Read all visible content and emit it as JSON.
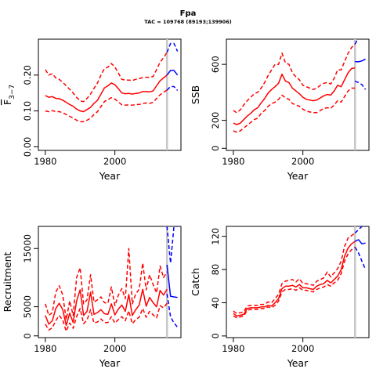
{
  "header": {
    "title": "Fpa",
    "subtitle": "TAC = 109768 (89193;139906)"
  },
  "colors": {
    "hist": "#ff0000",
    "proj": "#0000ff",
    "vline": "#c8c8c8"
  },
  "chart_data": [
    {
      "id": "f",
      "type": "line",
      "xlabel": "Year",
      "ylabel": "F̅ 3–7",
      "ylabel_main": "F",
      "ylabel_sub": "3−7",
      "xlim": [
        1978,
        2019
      ],
      "ylim": [
        -0.01,
        0.3
      ],
      "xticks": [
        1980,
        2000
      ],
      "xtick_labels": [
        "1980",
        "2000"
      ],
      "yticks": [
        0.0,
        0.1,
        0.2
      ],
      "ytick_labels": [
        "0.00",
        "0.10",
        "0.20"
      ],
      "vline_x": 2015,
      "grid": false,
      "x": [
        1980,
        1981,
        1982,
        1983,
        1984,
        1985,
        1986,
        1987,
        1988,
        1989,
        1990,
        1991,
        1992,
        1993,
        1994,
        1995,
        1996,
        1997,
        1998,
        1999,
        2000,
        2001,
        2002,
        2003,
        2004,
        2005,
        2006,
        2007,
        2008,
        2009,
        2010,
        2011,
        2012,
        2013,
        2014,
        2015
      ],
      "series": [
        {
          "role": "median",
          "line": "solid",
          "values": [
            0.143,
            0.138,
            0.14,
            0.135,
            0.134,
            0.13,
            0.124,
            0.118,
            0.113,
            0.105,
            0.1,
            0.098,
            0.104,
            0.11,
            0.121,
            0.13,
            0.147,
            0.164,
            0.17,
            0.178,
            0.173,
            0.162,
            0.15,
            0.148,
            0.149,
            0.147,
            0.149,
            0.15,
            0.154,
            0.154,
            0.153,
            0.156,
            0.17,
            0.184,
            0.192,
            0.2
          ]
        },
        {
          "role": "upper",
          "line": "dashed",
          "values": [
            0.215,
            0.2,
            0.204,
            0.192,
            0.188,
            0.18,
            0.17,
            0.16,
            0.15,
            0.138,
            0.128,
            0.126,
            0.135,
            0.147,
            0.163,
            0.178,
            0.2,
            0.218,
            0.222,
            0.232,
            0.222,
            0.206,
            0.188,
            0.186,
            0.186,
            0.185,
            0.188,
            0.19,
            0.193,
            0.194,
            0.194,
            0.196,
            0.215,
            0.236,
            0.248,
            0.263
          ]
        },
        {
          "role": "lower",
          "line": "dashed",
          "values": [
            0.1,
            0.098,
            0.101,
            0.098,
            0.098,
            0.095,
            0.09,
            0.085,
            0.08,
            0.074,
            0.07,
            0.07,
            0.074,
            0.08,
            0.09,
            0.098,
            0.112,
            0.126,
            0.132,
            0.137,
            0.133,
            0.125,
            0.117,
            0.116,
            0.117,
            0.116,
            0.118,
            0.118,
            0.121,
            0.122,
            0.121,
            0.124,
            0.135,
            0.145,
            0.152,
            0.158
          ]
        }
      ],
      "projection": {
        "x": [
          2015,
          2016,
          2017,
          2018
        ],
        "series": [
          {
            "role": "median",
            "line": "solid",
            "values": [
              0.2,
              0.213,
              0.213,
              0.2
            ]
          },
          {
            "role": "upper",
            "line": "dashed",
            "values": [
              0.263,
              0.288,
              0.288,
              0.266
            ]
          },
          {
            "role": "lower",
            "line": "dashed",
            "values": [
              0.158,
              0.168,
              0.168,
              0.157
            ]
          }
        ]
      }
    },
    {
      "id": "ssb",
      "type": "line",
      "xlabel": "Year",
      "ylabel": "SSB",
      "xlim": [
        1978,
        2019
      ],
      "ylim": [
        -15,
        780
      ],
      "xticks": [
        1980,
        2000
      ],
      "xtick_labels": [
        "1980",
        "2000"
      ],
      "yticks": [
        0,
        200,
        600
      ],
      "ytick_labels": [
        "0",
        "200",
        "600"
      ],
      "vline_x": 2015,
      "grid": false,
      "x": [
        1980,
        1981,
        1982,
        1983,
        1984,
        1985,
        1986,
        1987,
        1988,
        1989,
        1990,
        1991,
        1992,
        1993,
        1994,
        1995,
        1996,
        1997,
        1998,
        1999,
        2000,
        2001,
        2002,
        2003,
        2004,
        2005,
        2006,
        2007,
        2008,
        2009,
        2010,
        2011,
        2012,
        2013,
        2014,
        2015
      ],
      "series": [
        {
          "role": "median",
          "line": "solid",
          "values": [
            180,
            170,
            180,
            205,
            230,
            250,
            275,
            290,
            325,
            355,
            395,
            420,
            440,
            465,
            530,
            480,
            470,
            430,
            410,
            390,
            365,
            350,
            345,
            340,
            345,
            360,
            375,
            385,
            380,
            410,
            450,
            440,
            490,
            540,
            570,
            575
          ]
        },
        {
          "role": "upper",
          "line": "dashed",
          "values": [
            270,
            255,
            275,
            310,
            340,
            365,
            390,
            400,
            430,
            470,
            520,
            560,
            600,
            600,
            680,
            610,
            600,
            540,
            510,
            490,
            450,
            440,
            430,
            420,
            430,
            450,
            465,
            470,
            460,
            500,
            560,
            560,
            620,
            680,
            720,
            745
          ]
        },
        {
          "role": "lower",
          "line": "dashed",
          "values": [
            125,
            115,
            125,
            145,
            165,
            185,
            205,
            215,
            250,
            270,
            300,
            320,
            330,
            350,
            380,
            360,
            350,
            320,
            310,
            300,
            280,
            265,
            260,
            255,
            255,
            270,
            285,
            290,
            285,
            310,
            340,
            330,
            370,
            410,
            430,
            430
          ]
        }
      ],
      "projection": {
        "x": [
          2015,
          2016,
          2017,
          2018
        ],
        "series": [
          {
            "role": "median",
            "line": "solid",
            "values": [
              620,
              618,
              625,
              638
            ]
          },
          {
            "role": "upper",
            "line": "dashed",
            "values": [
              745,
              790,
              800,
              800
            ]
          },
          {
            "role": "lower",
            "line": "dashed",
            "values": [
              480,
              470,
              455,
              420
            ]
          }
        ]
      }
    },
    {
      "id": "rec",
      "type": "line",
      "xlabel": "Year",
      "ylabel": "Recruitment",
      "xlim": [
        1978,
        2019
      ],
      "ylim": [
        -300,
        18800
      ],
      "xticks": [
        1980,
        2000
      ],
      "xtick_labels": [
        "1980",
        "2000"
      ],
      "yticks": [
        0,
        5000,
        15000
      ],
      "ytick_labels": [
        "0",
        "5000",
        "15000"
      ],
      "vline_x": 2015,
      "grid": false,
      "x": [
        1980,
        1981,
        1982,
        1983,
        1984,
        1985,
        1986,
        1987,
        1988,
        1989,
        1990,
        1991,
        1992,
        1993,
        1994,
        1995,
        1996,
        1997,
        1998,
        1999,
        2000,
        2001,
        2002,
        2003,
        2004,
        2005,
        2006,
        2007,
        2008,
        2009,
        2010,
        2011,
        2012,
        2013,
        2014,
        2015
      ],
      "series": [
        {
          "role": "median",
          "line": "solid",
          "values": [
            3500,
            2000,
            2600,
            4700,
            5600,
            4500,
            1800,
            3900,
            2300,
            6000,
            7900,
            3500,
            4200,
            7500,
            3700,
            4000,
            4500,
            3800,
            3700,
            5500,
            3600,
            4600,
            5300,
            4200,
            7100,
            3500,
            4500,
            5300,
            8000,
            5100,
            6600,
            5700,
            5000,
            7800,
            7000,
            8000
          ]
        },
        {
          "role": "upper",
          "line": "dashed",
          "values": [
            5500,
            3500,
            4000,
            7500,
            8600,
            7000,
            2800,
            6000,
            3500,
            10000,
            11700,
            5500,
            6200,
            10500,
            5800,
            6200,
            6700,
            5700,
            5600,
            8400,
            5200,
            7000,
            8100,
            6400,
            15000,
            5500,
            7200,
            8000,
            12500,
            7900,
            10500,
            8800,
            7400,
            12000,
            10000,
            11000
          ]
        },
        {
          "role": "lower",
          "line": "dashed",
          "values": [
            2000,
            1000,
            1400,
            2600,
            3500,
            2700,
            800,
            2200,
            1300,
            3300,
            4700,
            2100,
            2700,
            4500,
            2200,
            2400,
            2900,
            2300,
            2300,
            3300,
            2200,
            2800,
            3300,
            2600,
            4300,
            2100,
            2800,
            3200,
            4700,
            3200,
            4200,
            3600,
            3100,
            5200,
            4800,
            5600
          ]
        }
      ],
      "projection": {
        "x": [
          2015,
          2016,
          2017,
          2018
        ],
        "series": [
          {
            "role": "median",
            "line": "solid",
            "values": [
              12200,
              6800,
              6700,
              6600
            ]
          },
          {
            "role": "upper",
            "line": "dashed",
            "values": [
              18800,
              12500,
              18800,
              18800
            ]
          },
          {
            "role": "lower",
            "line": "dashed",
            "values": [
              7200,
              3300,
              2200,
              1500
            ]
          }
        ]
      }
    },
    {
      "id": "catch",
      "type": "line",
      "xlabel": "Year",
      "ylabel": "Catch",
      "xlim": [
        1978,
        2019
      ],
      "ylim": [
        -2,
        132
      ],
      "xticks": [
        1980,
        2000
      ],
      "xtick_labels": [
        "1980",
        "2000"
      ],
      "yticks": [
        0,
        40,
        80,
        120
      ],
      "ytick_labels": [
        "0",
        "40",
        "80",
        "120"
      ],
      "vline_x": 2015,
      "grid": false,
      "x": [
        1980,
        1981,
        1982,
        1983,
        1984,
        1985,
        1986,
        1987,
        1988,
        1989,
        1990,
        1991,
        1992,
        1993,
        1994,
        1995,
        1996,
        1997,
        1998,
        1999,
        2000,
        2001,
        2002,
        2003,
        2004,
        2005,
        2006,
        2007,
        2008,
        2009,
        2010,
        2011,
        2012,
        2013,
        2014,
        2015
      ],
      "series": [
        {
          "role": "median",
          "line": "solid",
          "values": [
            27,
            24,
            25,
            26,
            33,
            34,
            34,
            34,
            35,
            35,
            37,
            36,
            40,
            45,
            57,
            60,
            60,
            61,
            59,
            62,
            58,
            58,
            57,
            56,
            60,
            62,
            63,
            67,
            64,
            68,
            72,
            80,
            96,
            106,
            111,
            114
          ]
        },
        {
          "role": "upper",
          "line": "dashed",
          "values": [
            30,
            27,
            28,
            29,
            36,
            37,
            37,
            37,
            38,
            38,
            41,
            40,
            45,
            50,
            63,
            66,
            67,
            68,
            65,
            69,
            63,
            63,
            62,
            61,
            66,
            68,
            70,
            77,
            71,
            76,
            81,
            90,
            108,
            118,
            121,
            124
          ]
        },
        {
          "role": "lower",
          "line": "dashed",
          "values": [
            24,
            22,
            23,
            24,
            31,
            32,
            32,
            32,
            33,
            33,
            35,
            34,
            37,
            42,
            53,
            56,
            56,
            57,
            55,
            58,
            55,
            55,
            54,
            53,
            56,
            58,
            59,
            62,
            60,
            64,
            67,
            75,
            90,
            99,
            104,
            107
          ]
        }
      ],
      "projection": {
        "x": [
          2015,
          2016,
          2017,
          2018
        ],
        "series": [
          {
            "role": "median",
            "line": "solid",
            "values": [
              114,
              116,
              111,
              112
            ]
          },
          {
            "role": "upper",
            "line": "dashed",
            "values": [
              124,
              128,
              132,
              132
            ]
          },
          {
            "role": "lower",
            "line": "dashed",
            "values": [
              107,
              100,
              90,
              80
            ]
          }
        ]
      }
    }
  ]
}
